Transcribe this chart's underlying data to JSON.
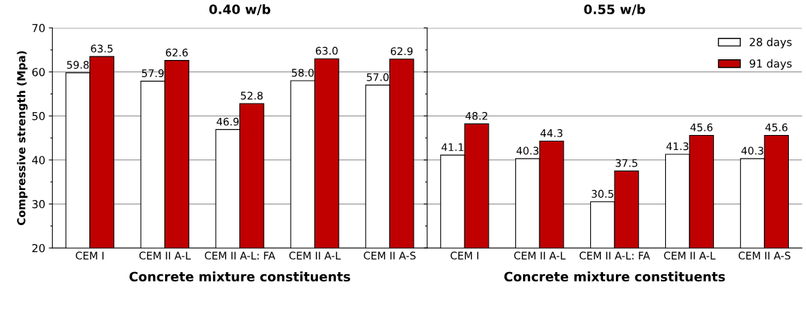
{
  "chart_data": [
    {
      "type": "bar",
      "title": "0.40 w/b",
      "xlabel": "Concrete mixture constituents",
      "ylabel": "Compressive strength (Mpa)",
      "categories": [
        "CEM I",
        "CEM II A-L",
        "CEM II A-L: FA",
        "CEM II A-L",
        "CEM II A-S"
      ],
      "series": [
        {
          "color": "#ffffff",
          "values": [
            59.8,
            57.9,
            46.9,
            58.0,
            57.0
          ],
          "value_labels": [
            "59.8",
            "57.9",
            "46.9",
            "58.0",
            "57.0"
          ]
        },
        {
          "color": "#c00000",
          "values": [
            63.5,
            62.6,
            52.8,
            63.0,
            62.9
          ],
          "value_labels": [
            "63.5",
            "62.6",
            "52.8",
            "63.0",
            "62.9"
          ]
        }
      ],
      "ylim": [
        20,
        70
      ],
      "yticks": [
        20,
        {
          "value": 25,
          "label": null
        },
        30,
        {
          "value": 35,
          "label": null
        },
        40,
        {
          "value": 45,
          "label": null
        },
        50,
        {
          "value": 55,
          "label": null
        },
        60,
        {
          "value": 65,
          "label": null
        },
        70
      ],
      "grid": "y"
    },
    {
      "type": "bar",
      "title": "0.55 w/b",
      "xlabel": "Concrete mixture constituents",
      "categories": [
        "CEM I",
        "CEM II A-L",
        "CEM II A-L: FA",
        "CEM II A-L",
        "CEM II A-S"
      ],
      "series": [
        {
          "name": "28 days",
          "color": "#ffffff",
          "values": [
            41.1,
            40.3,
            30.5,
            41.3,
            40.3
          ],
          "value_labels": [
            "41.1",
            "40.3",
            "30.5",
            "41.3",
            "40.3"
          ]
        },
        {
          "name": "91 days",
          "color": "#c00000",
          "values": [
            48.2,
            44.3,
            37.5,
            45.6,
            45.6
          ],
          "value_labels": [
            "48.2",
            "44.3",
            "37.5",
            "45.6",
            "45.6"
          ]
        }
      ],
      "ylim": [
        20,
        70
      ],
      "yticks": [
        20,
        {
          "value": 25,
          "label": null
        },
        30,
        {
          "value": 35,
          "label": null
        },
        40,
        {
          "value": 45,
          "label": null
        },
        50,
        {
          "value": 55,
          "label": null
        },
        60,
        {
          "value": 65,
          "label": null
        },
        70
      ],
      "grid": "y",
      "tick_labels": "x",
      "legend": "top right"
    }
  ]
}
